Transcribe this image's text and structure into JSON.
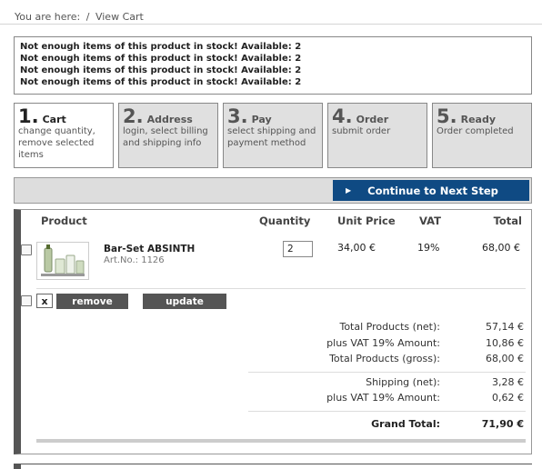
{
  "breadcrumb": {
    "prefix": "You are here:",
    "separator": "/",
    "current": "View Cart"
  },
  "alerts": [
    "Not enough items of this product in stock! Available: 2",
    "Not enough items of this product in stock! Available: 2",
    "Not enough items of this product in stock! Available: 2",
    "Not enough items of this product in stock! Available: 2"
  ],
  "steps": [
    {
      "num": "1.",
      "title": "Cart",
      "desc": "change quantity, remove selected items"
    },
    {
      "num": "2.",
      "title": "Address",
      "desc": "login, select billing and shipping info"
    },
    {
      "num": "3.",
      "title": "Pay",
      "desc": "select shipping and payment method"
    },
    {
      "num": "4.",
      "title": "Order",
      "desc": "submit order"
    },
    {
      "num": "5.",
      "title": "Ready",
      "desc": "Order completed"
    }
  ],
  "next_button": {
    "label": "Continue to Next Step"
  },
  "table": {
    "headers": {
      "product": "Product",
      "quantity": "Quantity",
      "unit_price": "Unit Price",
      "vat": "VAT",
      "total": "Total"
    },
    "rows": [
      {
        "name": "Bar-Set ABSINTH",
        "art_no": "Art.No.: 1126",
        "quantity": "2",
        "unit_price": "34,00 €",
        "vat": "19%",
        "total": "68,00 €"
      }
    ]
  },
  "actions": {
    "x_label": "x",
    "remove": "remove",
    "update": "update"
  },
  "summary": {
    "net_label": "Total Products (net):",
    "net": "57,14 €",
    "vat_label": "plus VAT 19% Amount:",
    "vat": "10,86 €",
    "gross_label": "Total Products (gross):",
    "gross": "68,00 €",
    "ship_label": "Shipping (net):",
    "ship": "3,28 €",
    "ship_vat_label": "plus VAT 19% Amount:",
    "ship_vat": "0,62 €",
    "grand_label": "Grand Total:",
    "grand": "71,90 €"
  },
  "colors": {
    "accent": "#0f4a83",
    "button_dark": "#555555",
    "step_inactive": "#e0e0e0"
  }
}
